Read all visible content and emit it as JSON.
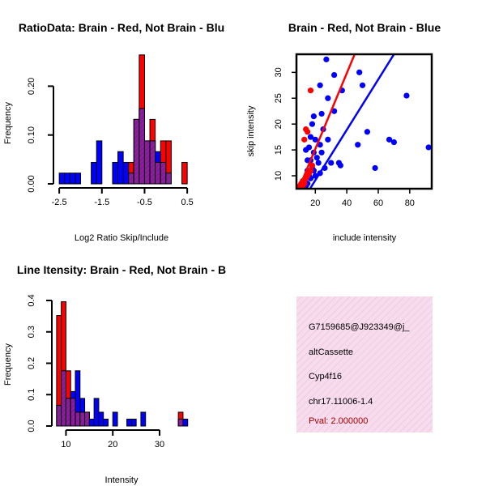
{
  "colors": {
    "red": "#ff0000",
    "blue": "#0000ff",
    "overlap": "#8b1a9a",
    "info_bg": "#f7dced",
    "pval": "#a00000"
  },
  "chart_data": [
    {
      "type": "bar",
      "subtype": "overlaid-histogram",
      "title": "RatioData: Brain - Red, Not Brain - Blu",
      "xlabel": "Log2 Ratio Skip/Include",
      "ylabel": "Frequency",
      "xlim": [
        -2.55,
        0.6
      ],
      "ylim": [
        0,
        0.27
      ],
      "xticks": [
        -2.5,
        -1.5,
        -0.5,
        0.5
      ],
      "xticklabels": [
        "-2.5",
        "-1.5",
        "-0.5",
        "0.5"
      ],
      "yticks": [
        0.0,
        0.1,
        0.2
      ],
      "yticklabels": [
        "0.00",
        "0.10",
        "0.20"
      ],
      "bin_edges": [
        -2.5,
        -2.375,
        -2.25,
        -2.125,
        -2.0,
        -1.875,
        -1.75,
        -1.625,
        -1.5,
        -1.375,
        -1.25,
        -1.125,
        -1.0,
        -0.875,
        -0.75,
        -0.625,
        -0.5,
        -0.375,
        -0.25,
        -0.125,
        0.0,
        0.125,
        0.25,
        0.375,
        0.5
      ],
      "series": [
        {
          "name": "Brain",
          "color": "red",
          "values": [
            0,
            0,
            0,
            0,
            0,
            0,
            0,
            0,
            0,
            0,
            0,
            0,
            0,
            0.044,
            0.132,
            0.264,
            0.088,
            0.132,
            0.044,
            0.088,
            0.088,
            0,
            0,
            0.044
          ]
        },
        {
          "name": "Not Brain",
          "color": "blue",
          "values": [
            0.022,
            0.022,
            0.022,
            0.022,
            0,
            0,
            0.044,
            0.088,
            0,
            0,
            0.044,
            0.066,
            0.044,
            0.022,
            0.132,
            0.154,
            0.088,
            0.088,
            0.066,
            0.044,
            0.022,
            0,
            0,
            0
          ]
        }
      ]
    },
    {
      "type": "scatter",
      "title": "Brain - Red, Not Brain - Blue",
      "xlabel": "include intensity",
      "ylabel": "skip intensity",
      "xlim": [
        8,
        94
      ],
      "ylim": [
        7.5,
        33.5
      ],
      "xticks": [
        20,
        40,
        60,
        80
      ],
      "xticklabels": [
        "20",
        "40",
        "60",
        "80"
      ],
      "yticks": [
        10,
        15,
        20,
        25,
        30
      ],
      "yticklabels": [
        "10",
        "15",
        "20",
        "25",
        "30"
      ],
      "series": [
        {
          "name": "Brain",
          "color": "red",
          "points": [
            [
              17,
              26.5
            ],
            [
              14,
              19
            ],
            [
              15,
              18.5
            ],
            [
              13,
              17
            ],
            [
              18,
              12
            ],
            [
              17,
              11
            ],
            [
              16,
              10.5
            ],
            [
              15,
              10
            ],
            [
              14,
              9.5
            ],
            [
              13,
              9
            ],
            [
              12,
              9
            ],
            [
              11,
              8.5
            ],
            [
              10,
              8
            ],
            [
              12,
              8
            ],
            [
              13,
              8.5
            ]
          ],
          "fit_line": [
            [
              8,
              6.4
            ],
            [
              45,
              33.5
            ]
          ]
        },
        {
          "name": "Not Brain",
          "color": "blue",
          "points": [
            [
              27,
              32.5
            ],
            [
              48,
              30
            ],
            [
              32,
              29.5
            ],
            [
              23,
              27.5
            ],
            [
              50,
              27.5
            ],
            [
              37,
              26.5
            ],
            [
              78,
              25.5
            ],
            [
              28,
              25
            ],
            [
              32,
              22.5
            ],
            [
              24,
              22
            ],
            [
              19,
              21.5
            ],
            [
              18,
              20
            ],
            [
              25,
              19
            ],
            [
              53,
              18.5
            ],
            [
              28,
              17
            ],
            [
              67,
              17
            ],
            [
              70,
              16.5
            ],
            [
              17,
              17.5
            ],
            [
              20,
              17
            ],
            [
              23,
              16
            ],
            [
              47,
              16
            ],
            [
              92,
              15.5
            ],
            [
              14,
              15
            ],
            [
              16,
              15.5
            ],
            [
              19,
              14.5
            ],
            [
              24,
              14.5
            ],
            [
              21,
              13.5
            ],
            [
              15,
              13
            ],
            [
              17,
              13
            ],
            [
              22,
              12.5
            ],
            [
              30,
              12.5
            ],
            [
              35,
              12.5
            ],
            [
              36,
              12
            ],
            [
              58,
              11.5
            ],
            [
              18,
              11.5
            ],
            [
              26,
              11.5
            ],
            [
              15,
              11
            ],
            [
              19,
              11
            ],
            [
              23,
              10.5
            ],
            [
              16,
              10
            ],
            [
              20,
              10
            ],
            [
              14,
              9.5
            ],
            [
              17,
              9.5
            ],
            [
              13,
              9
            ],
            [
              15,
              8.5
            ],
            [
              12,
              8.5
            ],
            [
              11,
              8
            ],
            [
              14,
              8
            ],
            [
              10,
              7.8
            ],
            [
              12,
              7.6
            ]
          ],
          "fit_line": [
            [
              8,
              3.3
            ],
            [
              70,
              33.5
            ]
          ]
        }
      ]
    },
    {
      "type": "bar",
      "subtype": "overlaid-histogram",
      "title": "Line Itensity: Brain - Red, Not Brain - B",
      "xlabel": "Intensity",
      "ylabel": "Frequency",
      "xlim": [
        7.5,
        37
      ],
      "ylim": [
        0,
        0.4
      ],
      "xticks": [
        10,
        20,
        30
      ],
      "xticklabels": [
        "10",
        "20",
        "30"
      ],
      "yticks": [
        0.0,
        0.1,
        0.2,
        0.3,
        0.4
      ],
      "yticklabels": [
        "0.0",
        "0.1",
        "0.2",
        "0.3",
        "0.4"
      ],
      "bin_edges": [
        8,
        9,
        10,
        11,
        12,
        13,
        14,
        15,
        16,
        17,
        18,
        19,
        20,
        21,
        22,
        23,
        24,
        25,
        26,
        27,
        28,
        29,
        30,
        31,
        32,
        33,
        34,
        35,
        36
      ],
      "series": [
        {
          "name": "Brain",
          "color": "red",
          "values": [
            0.352,
            0.396,
            0.176,
            0.088,
            0.044,
            0.044,
            0.044,
            0,
            0,
            0,
            0,
            0,
            0,
            0,
            0,
            0,
            0,
            0,
            0,
            0,
            0,
            0,
            0,
            0,
            0,
            0,
            0.044,
            0
          ]
        },
        {
          "name": "Not Brain",
          "color": "blue",
          "values": [
            0.066,
            0.176,
            0.088,
            0.11,
            0.176,
            0.088,
            0.044,
            0.022,
            0.088,
            0.044,
            0.022,
            0,
            0.044,
            0,
            0,
            0.022,
            0.022,
            0,
            0.044,
            0,
            0,
            0,
            0,
            0,
            0,
            0,
            0.022,
            0.022
          ]
        }
      ]
    }
  ],
  "info_panel": {
    "lines": [
      "G7159685@J923349@j_",
      "altCassette",
      "Cyp4f16",
      "chr17.11006-1.4"
    ],
    "pval": "Pval: 2.000000"
  }
}
